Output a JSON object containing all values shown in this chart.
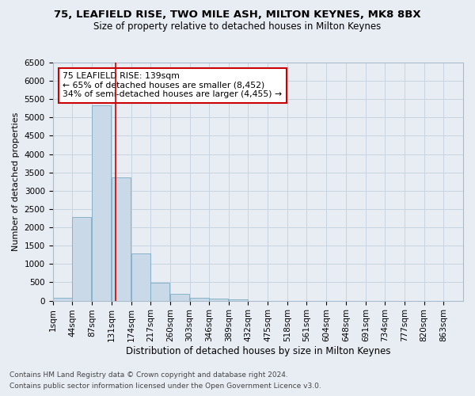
{
  "title1": "75, LEAFIELD RISE, TWO MILE ASH, MILTON KEYNES, MK8 8BX",
  "title2": "Size of property relative to detached houses in Milton Keynes",
  "xlabel": "Distribution of detached houses by size in Milton Keynes",
  "ylabel": "Number of detached properties",
  "footer1": "Contains HM Land Registry data © Crown copyright and database right 2024.",
  "footer2": "Contains public sector information licensed under the Open Government Licence v3.0.",
  "annotation_line1": "75 LEAFIELD RISE: 139sqm",
  "annotation_line2": "← 65% of detached houses are smaller (8,452)",
  "annotation_line3": "34% of semi-detached houses are larger (4,455) →",
  "property_size_sqm": 139,
  "categories": [
    "1sqm",
    "44sqm",
    "87sqm",
    "131sqm",
    "174sqm",
    "217sqm",
    "260sqm",
    "303sqm",
    "346sqm",
    "389sqm",
    "432sqm",
    "475sqm",
    "518sqm",
    "561sqm",
    "604sqm",
    "648sqm",
    "691sqm",
    "734sqm",
    "777sqm",
    "820sqm",
    "863sqm"
  ],
  "bin_edges": [
    1,
    44,
    87,
    131,
    174,
    217,
    260,
    303,
    346,
    389,
    432,
    475,
    518,
    561,
    604,
    648,
    691,
    734,
    777,
    820,
    863,
    906
  ],
  "values": [
    70,
    2280,
    5330,
    3370,
    1290,
    480,
    195,
    80,
    50,
    30,
    0,
    0,
    0,
    0,
    0,
    0,
    0,
    0,
    0,
    0,
    0
  ],
  "bar_color": "#c9d9e8",
  "bar_edge_color": "#7bacc4",
  "vline_color": "#cc0000",
  "vline_x": 139,
  "annotation_box_color": "#ffffff",
  "annotation_box_edge": "#cc0000",
  "grid_color": "#c8d4e0",
  "background_color": "#e8edf4",
  "ylim": [
    0,
    6500
  ],
  "yticks": [
    0,
    500,
    1000,
    1500,
    2000,
    2500,
    3000,
    3500,
    4000,
    4500,
    5000,
    5500,
    6000,
    6500
  ],
  "title1_fontsize": 9.5,
  "title2_fontsize": 8.5,
  "xlabel_fontsize": 8.5,
  "ylabel_fontsize": 8,
  "tick_fontsize": 7.5,
  "annotation_fontsize": 7.8,
  "footer_fontsize": 6.5
}
